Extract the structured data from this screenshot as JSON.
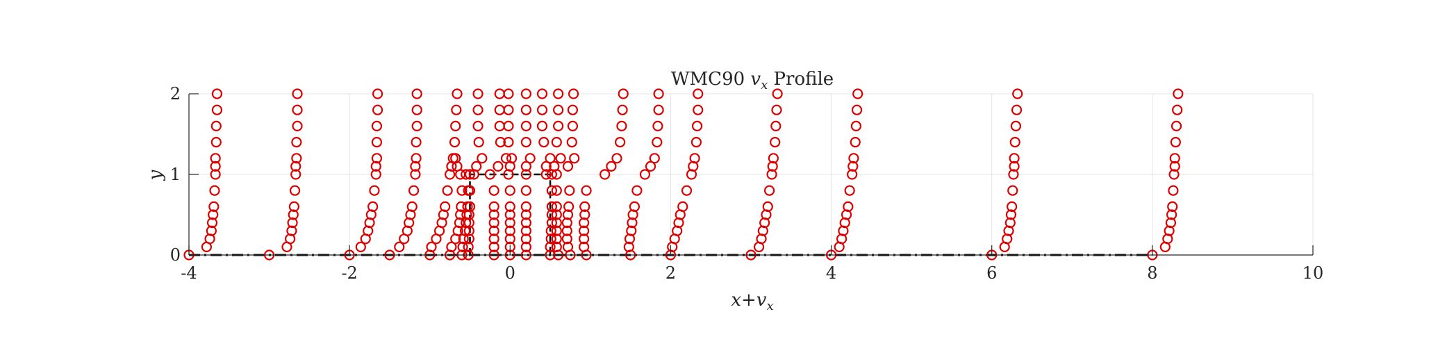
{
  "chart_data": {
    "type": "scatter",
    "title": {
      "prefix": "WMC90 ",
      "var": "v",
      "sub": "x",
      "suffix": " Profile"
    },
    "xlabel": {
      "a": "x",
      "plus": "+",
      "var": "v",
      "sub": "x"
    },
    "ylabel": "y",
    "xlim": [
      -4,
      10
    ],
    "ylim": [
      0,
      2
    ],
    "x_ticks": [
      -4,
      -2,
      0,
      2,
      4,
      6,
      8,
      10
    ],
    "y_ticks": [
      0,
      1,
      2
    ],
    "x_tick_labels": [
      "-4",
      "-2",
      "0",
      "2",
      "4",
      "6",
      "8",
      "10"
    ],
    "y_tick_labels": [
      "0",
      "1",
      "2"
    ],
    "grid": true,
    "marker": "open-circle",
    "marker_color": "#dd0000",
    "obstacle": {
      "x": [
        -0.5,
        -0.5,
        0.5,
        0.5
      ],
      "y": [
        0,
        1,
        1,
        0
      ],
      "style": "dashed"
    },
    "ground_line": {
      "x": [
        -4,
        8
      ],
      "y": 0,
      "style": "dash-dot"
    },
    "y_levels": [
      0,
      0.1,
      0.2,
      0.3,
      0.4,
      0.5,
      0.6,
      0.8,
      1.0,
      1.1,
      1.2,
      1.4,
      1.6,
      1.8,
      2.0
    ],
    "profiles_full": [
      {
        "x0": -4,
        "values": [
          -4.0,
          -3.78,
          -3.74,
          -3.72,
          -3.71,
          -3.7,
          -3.69,
          -3.68,
          -3.67,
          -3.67,
          -3.67,
          -3.66,
          -3.66,
          -3.65,
          -3.65
        ]
      },
      {
        "x0": -3,
        "values": [
          -3.0,
          -2.78,
          -2.74,
          -2.72,
          -2.71,
          -2.7,
          -2.69,
          -2.68,
          -2.67,
          -2.67,
          -2.66,
          -2.66,
          -2.65,
          -2.65,
          -2.65
        ]
      },
      {
        "x0": -2,
        "values": [
          -2.0,
          -1.86,
          -1.8,
          -1.77,
          -1.75,
          -1.73,
          -1.71,
          -1.69,
          -1.67,
          -1.67,
          -1.66,
          -1.66,
          -1.66,
          -1.65,
          -1.65
        ]
      },
      {
        "x0": -1.5,
        "values": [
          -1.5,
          -1.38,
          -1.32,
          -1.28,
          -1.26,
          -1.24,
          -1.22,
          -1.2,
          -1.18,
          -1.18,
          -1.17,
          -1.17,
          -1.16,
          -1.16,
          -1.16
        ]
      },
      {
        "x0": -1,
        "values": [
          -1.0,
          -0.98,
          -0.92,
          -0.88,
          -0.85,
          -0.83,
          -0.81,
          -0.78,
          -0.75,
          -0.73,
          -0.71,
          -0.69,
          -0.68,
          -0.67,
          -0.66
        ]
      },
      {
        "x0": 1,
        "values": [
          0.95,
          0.92,
          0.92,
          0.92,
          0.92,
          0.93,
          0.93,
          0.95,
          1.18,
          1.26,
          1.33,
          1.37,
          1.39,
          1.4,
          1.41
        ]
      },
      {
        "x0": 1.5,
        "values": [
          1.5,
          1.48,
          1.49,
          1.51,
          1.52,
          1.53,
          1.55,
          1.58,
          1.68,
          1.75,
          1.8,
          1.83,
          1.84,
          1.85,
          1.85
        ]
      },
      {
        "x0": 2,
        "values": [
          2.0,
          2.02,
          2.05,
          2.08,
          2.1,
          2.12,
          2.15,
          2.2,
          2.26,
          2.28,
          2.3,
          2.32,
          2.33,
          2.34,
          2.34
        ]
      },
      {
        "x0": 3,
        "values": [
          3.0,
          3.1,
          3.13,
          3.15,
          3.17,
          3.19,
          3.21,
          3.23,
          3.26,
          3.27,
          3.28,
          3.3,
          3.31,
          3.32,
          3.33
        ]
      },
      {
        "x0": 4,
        "values": [
          4.0,
          4.1,
          4.13,
          4.15,
          4.17,
          4.19,
          4.21,
          4.23,
          4.26,
          4.27,
          4.28,
          4.3,
          4.31,
          4.32,
          4.33
        ]
      },
      {
        "x0": 6,
        "values": [
          6.0,
          6.16,
          6.19,
          6.21,
          6.23,
          6.24,
          6.25,
          6.26,
          6.27,
          6.28,
          6.28,
          6.29,
          6.3,
          6.31,
          6.32
        ]
      },
      {
        "x0": 8,
        "values": [
          8.0,
          8.16,
          8.19,
          8.21,
          8.23,
          8.24,
          8.25,
          8.26,
          8.27,
          8.28,
          8.28,
          8.29,
          8.3,
          8.31,
          8.32
        ]
      }
    ],
    "profiles_above_obstacle": [
      {
        "x0": -0.5,
        "values": [
          -0.42,
          -0.35,
          -0.39,
          -0.4,
          -0.4,
          -0.4
        ]
      },
      {
        "x0": -0.25,
        "values": [
          -0.15,
          -0.05,
          -0.12,
          -0.13,
          -0.13,
          -0.13
        ]
      },
      {
        "x0": 0,
        "values": [
          0.0,
          0.02,
          -0.02,
          -0.02,
          -0.02,
          -0.02
        ]
      },
      {
        "x0": 0.25,
        "values": [
          0.2,
          0.25,
          0.2,
          0.2,
          0.2,
          0.2
        ]
      },
      {
        "x0": 0.5,
        "values": [
          0.45,
          0.5,
          0.42,
          0.4,
          0.4,
          0.4
        ]
      },
      {
        "x0": 0.75,
        "values": [
          0.55,
          0.63,
          0.58,
          0.6,
          0.6,
          0.6
        ]
      },
      {
        "x0": 1,
        "values": [
          0.72,
          0.8,
          0.77,
          0.78,
          0.78,
          0.79
        ]
      }
    ],
    "obstacle_above_y": [
      1.0,
      1.1,
      1.2,
      1.4,
      1.6,
      1.8,
      2.0
    ],
    "profiles_in_front": [
      {
        "x0": -0.75,
        "y": [
          0,
          0.1,
          0.2,
          0.3,
          0.4,
          0.5,
          0.6,
          0.8,
          1.0,
          1.1,
          1.2
        ],
        "values": [
          -0.75,
          -0.73,
          -0.68,
          -0.65,
          -0.63,
          -0.62,
          -0.61,
          -0.6,
          -0.62,
          -0.66,
          -0.68
        ]
      },
      {
        "x0": -0.6,
        "y": [
          0,
          0.1,
          0.2,
          0.3,
          0.4,
          0.5,
          0.6,
          0.8,
          1.0
        ],
        "values": [
          -0.6,
          -0.59,
          -0.58,
          -0.56,
          -0.55,
          -0.54,
          -0.53,
          -0.52,
          -0.55
        ]
      },
      {
        "x0": -0.5,
        "y": [
          0,
          0.1,
          0.2,
          0.3,
          0.4,
          0.5,
          0.6,
          0.8,
          1.0
        ],
        "values": [
          -0.52,
          -0.52,
          -0.51,
          -0.51,
          -0.51,
          -0.51,
          -0.5,
          -0.5,
          -0.5
        ]
      }
    ],
    "profiles_behind": [
      {
        "x0": 0.5,
        "y": [
          0,
          0.1,
          0.2,
          0.3,
          0.4,
          0.5,
          0.6,
          0.8,
          1.0
        ],
        "values": [
          0.5,
          0.5,
          0.51,
          0.51,
          0.52,
          0.52,
          0.52,
          0.52,
          0.52
        ]
      },
      {
        "x0": 0.6,
        "y": [
          0,
          0.1,
          0.2,
          0.3,
          0.4,
          0.5,
          0.6,
          0.8,
          1.0
        ],
        "values": [
          0.6,
          0.58,
          0.58,
          0.58,
          0.58,
          0.58,
          0.58,
          0.58,
          0.58
        ]
      },
      {
        "x0": 0.75,
        "y": [
          0,
          0.1,
          0.2,
          0.3,
          0.4,
          0.5,
          0.6,
          0.8
        ],
        "values": [
          0.75,
          0.72,
          0.71,
          0.71,
          0.71,
          0.72,
          0.73,
          0.74
        ]
      }
    ],
    "interior_columns": [
      {
        "x0": -0.25,
        "values": [
          -0.2,
          -0.2,
          -0.2,
          -0.2,
          -0.2,
          -0.2,
          -0.2,
          -0.2
        ]
      },
      {
        "x0": 0,
        "values": [
          0.0,
          0.0,
          0.0,
          0.0,
          0.0,
          0.0,
          0.0,
          0.0
        ]
      },
      {
        "x0": 0.25,
        "values": [
          0.2,
          0.2,
          0.2,
          0.2,
          0.2,
          0.2,
          0.2,
          0.2
        ]
      }
    ],
    "interior_y": [
      0,
      0.1,
      0.2,
      0.3,
      0.4,
      0.5,
      0.6,
      0.8
    ]
  }
}
